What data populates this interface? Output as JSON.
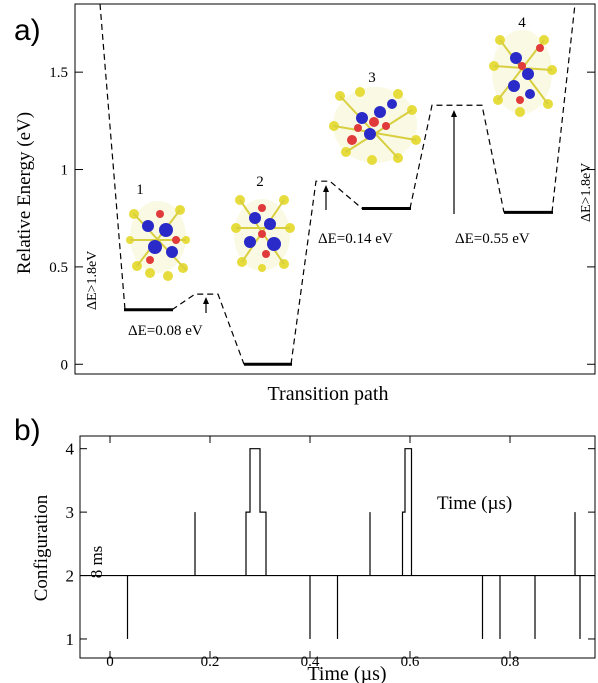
{
  "chart_data": [
    {
      "panel": "a)",
      "type": "line",
      "xlabel": "Transition path",
      "ylabel": "Relative Energy (eV)",
      "ylim": [
        -0.05,
        1.85
      ],
      "yticks": [
        "0",
        "0.5",
        "1",
        "1.5"
      ],
      "ytick_values": [
        0,
        0.5,
        1,
        1.5
      ],
      "minima": [
        {
          "label": "1",
          "energy": 0.28
        },
        {
          "label": "2",
          "energy": 0.0
        },
        {
          "label": "3",
          "energy": 0.8
        },
        {
          "label": "4",
          "energy": 0.78
        }
      ],
      "barriers": [
        {
          "label": "ΔE=0.08 eV",
          "energy": 0.36
        },
        {
          "label": "ΔE=0.14 eV",
          "energy": 0.94
        },
        {
          "label": "ΔE=0.55 eV",
          "energy": 1.33
        }
      ],
      "side_labels": [
        "ΔE>1.8eV",
        "ΔE>1.8eV"
      ],
      "structure_colors": {
        "yellow": "#e6dc3c",
        "blue": "#2a2ac8",
        "red": "#e03a3a"
      }
    },
    {
      "panel": "b)",
      "type": "line",
      "xlabel": "Time (µs)",
      "ylabel": "Configuration",
      "xlim": [
        -0.06,
        0.97
      ],
      "ylim": [
        0.7,
        4.2
      ],
      "xticks": [
        "0",
        "0.2",
        "0.4",
        "0.6",
        "0.8"
      ],
      "xtick_values": [
        0,
        0.2,
        0.4,
        0.6,
        0.8
      ],
      "yticks": [
        "1",
        "2",
        "3",
        "4"
      ],
      "ytick_values": [
        1,
        2,
        3,
        4
      ],
      "baseline": 2,
      "start": -0.06,
      "end": 0.97,
      "spikes_down": [
        0.035,
        0.4,
        0.455,
        0.745,
        0.78,
        0.85,
        0.94
      ],
      "spikes_up": [
        0.17,
        0.52,
        0.93
      ],
      "excursions": [
        {
          "t": [
            0.272,
            0.28,
            0.287,
            0.3,
            0.305,
            0.312
          ],
          "c": [
            3,
            4,
            4,
            3,
            3,
            2
          ]
        },
        {
          "t": [
            0.585,
            0.59,
            0.6,
            0.603
          ],
          "c": [
            3,
            4,
            4,
            2
          ]
        }
      ],
      "annotation": "Time (µs)",
      "side_label": "8 ms"
    }
  ]
}
